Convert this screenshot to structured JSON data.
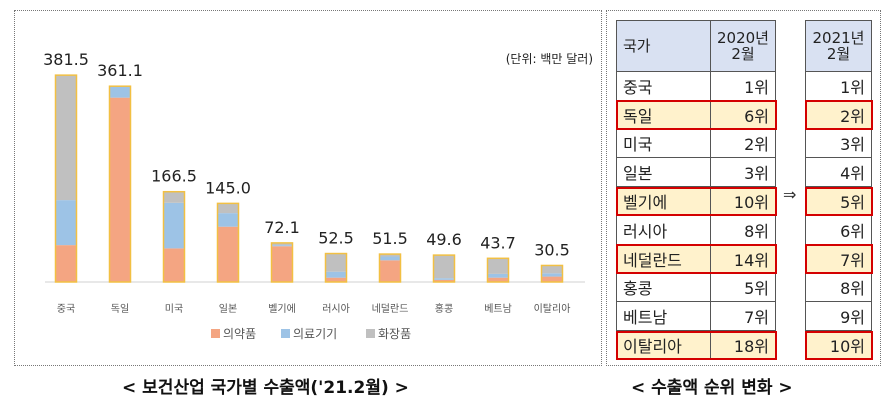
{
  "chart_data": {
    "type": "bar",
    "stacked": true,
    "title": "",
    "unit_note": "(단위: 백만 달러)",
    "categories": [
      "중국",
      "독일",
      "미국",
      "일본",
      "벨기에",
      "러시아",
      "네덜란드",
      "홍콩",
      "베트남",
      "이탈리아"
    ],
    "totals": [
      381.5,
      361.1,
      166.5,
      145.0,
      72.1,
      52.5,
      51.5,
      49.6,
      43.7,
      30.5
    ],
    "total_labels": [
      "381.5",
      "361.1",
      "166.5",
      "145.0",
      "72.1",
      "52.5",
      "51.5",
      "49.6",
      "43.7",
      "30.5"
    ],
    "series": [
      {
        "name": "의약품",
        "color": "#f4a582",
        "values": [
          68,
          340,
          62,
          102,
          66,
          8,
          40,
          4,
          8,
          10
        ]
      },
      {
        "name": "의료기기",
        "color": "#9dc3e6",
        "values": [
          83,
          21,
          84,
          25,
          2,
          11,
          7,
          3,
          7,
          6
        ]
      },
      {
        "name": "화장품",
        "color": "#c0c0c0",
        "values": [
          230.5,
          0.1,
          20.5,
          18.0,
          4.1,
          33.5,
          4.5,
          42.6,
          28.7,
          14.5
        ]
      }
    ],
    "ylim": [
      0,
      400
    ],
    "grid": false,
    "legend_position": "bottom"
  },
  "captions": {
    "left": "< 보건산업 국가별 수출액('21.2월) >",
    "right": "< 수출액 순위 변화 >"
  },
  "rank_table": {
    "header_country": "국가",
    "header_2020": [
      "2020년",
      "2월"
    ],
    "header_2021": [
      "2021년",
      "2월"
    ],
    "arrow": "⇒",
    "rows": [
      {
        "country": "중국",
        "rank_2020": "1위",
        "rank_2021": "1위",
        "highlight": false
      },
      {
        "country": "독일",
        "rank_2020": "6위",
        "rank_2021": "2위",
        "highlight": true
      },
      {
        "country": "미국",
        "rank_2020": "2위",
        "rank_2021": "3위",
        "highlight": false
      },
      {
        "country": "일본",
        "rank_2020": "3위",
        "rank_2021": "4위",
        "highlight": false
      },
      {
        "country": "벨기에",
        "rank_2020": "10위",
        "rank_2021": "5위",
        "highlight": true
      },
      {
        "country": "러시아",
        "rank_2020": "8위",
        "rank_2021": "6위",
        "highlight": false
      },
      {
        "country": "네덜란드",
        "rank_2020": "14위",
        "rank_2021": "7위",
        "highlight": true
      },
      {
        "country": "홍콩",
        "rank_2020": "5위",
        "rank_2021": "8위",
        "highlight": false
      },
      {
        "country": "베트남",
        "rank_2020": "7위",
        "rank_2021": "9위",
        "highlight": false
      },
      {
        "country": "이탈리아",
        "rank_2020": "18위",
        "rank_2021": "10위",
        "highlight": true
      }
    ],
    "highlight_color": "#d40000"
  }
}
